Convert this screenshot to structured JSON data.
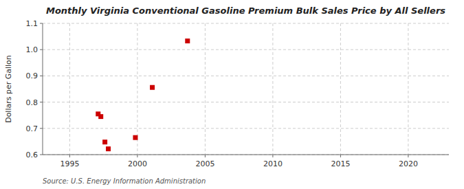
{
  "chart_data": {
    "type": "scatter",
    "title": "Monthly Virginia Conventional Gasoline Premium Bulk Sales Price by All Sellers",
    "y_label": "Dollars per Gallon",
    "annotations": [
      "Source: U.S. Energy Information Administration"
    ],
    "x": [
      1997.1,
      1997.3,
      1997.6,
      1997.85,
      1999.85,
      2001.1,
      2003.7
    ],
    "values": [
      0.755,
      0.745,
      0.648,
      0.622,
      0.665,
      0.856,
      1.033
    ],
    "color": "#cc0000",
    "marker": "square",
    "xlim": [
      1993,
      2023
    ],
    "ylim": [
      0.6,
      1.1
    ],
    "xticks": [
      1995,
      2000,
      2005,
      2010,
      2015,
      2020
    ],
    "yticks": [
      0.6,
      0.7,
      0.8,
      0.9,
      {
        "value": 1.0,
        "label": "1.0"
      },
      1.1
    ],
    "grid": true
  }
}
